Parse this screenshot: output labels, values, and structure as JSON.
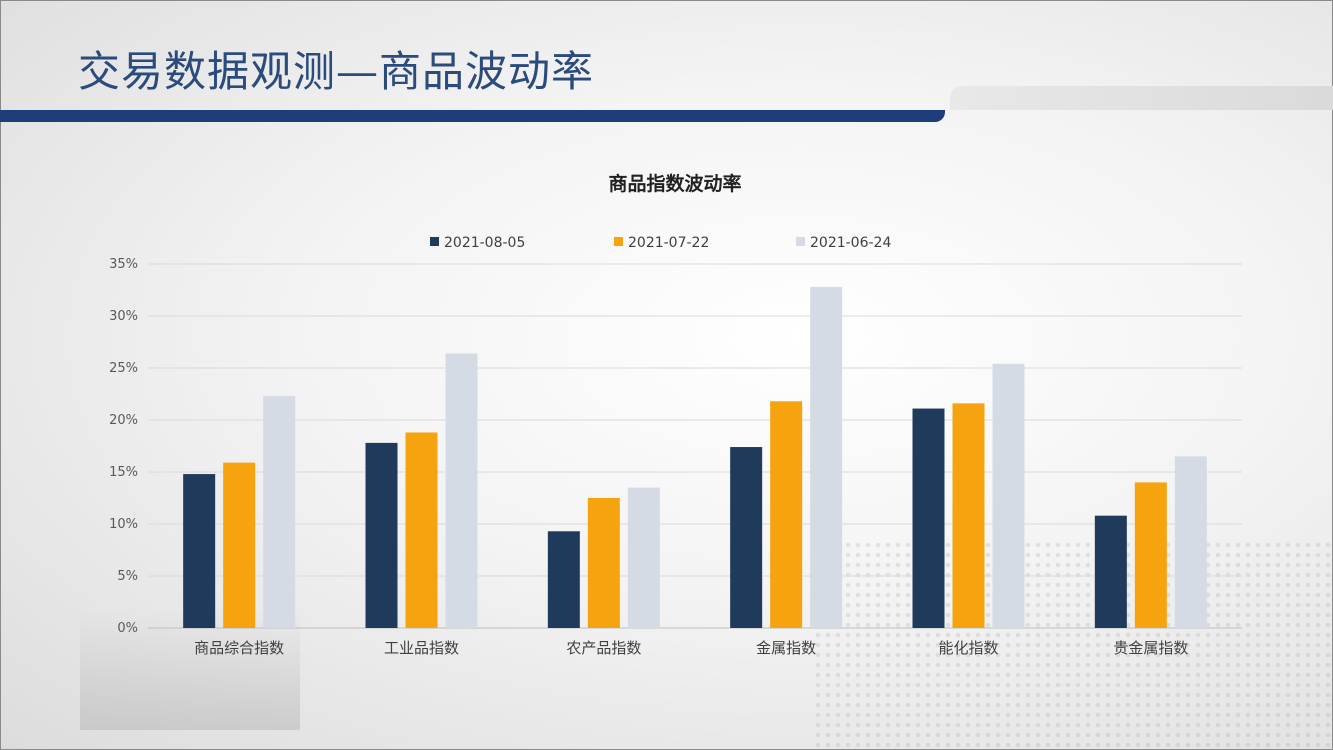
{
  "slide": {
    "title": "交易数据观测—商品波动率"
  },
  "chart_data": {
    "type": "bar",
    "title": "商品指数波动率",
    "xlabel": "",
    "ylabel": "",
    "ylim": [
      0,
      35
    ],
    "yticks": [
      "0%",
      "5%",
      "10%",
      "15%",
      "20%",
      "25%",
      "30%",
      "35%"
    ],
    "grid": true,
    "legend_position": "top",
    "categories": [
      "商品综合指数",
      "工业品指数",
      "农产品指数",
      "金属指数",
      "能化指数",
      "贵金属指数"
    ],
    "series": [
      {
        "name": "2021-08-05",
        "color": "#1f3a5a",
        "values": [
          14.8,
          17.8,
          9.3,
          17.4,
          21.1,
          10.8
        ]
      },
      {
        "name": "2021-07-22",
        "color": "#f5a30f",
        "values": [
          15.9,
          18.8,
          12.5,
          21.8,
          21.6,
          14.0
        ]
      },
      {
        "name": "2021-06-24",
        "color": "#d5dbe4",
        "values": [
          22.3,
          26.4,
          13.5,
          32.8,
          25.4,
          16.5
        ]
      }
    ]
  }
}
